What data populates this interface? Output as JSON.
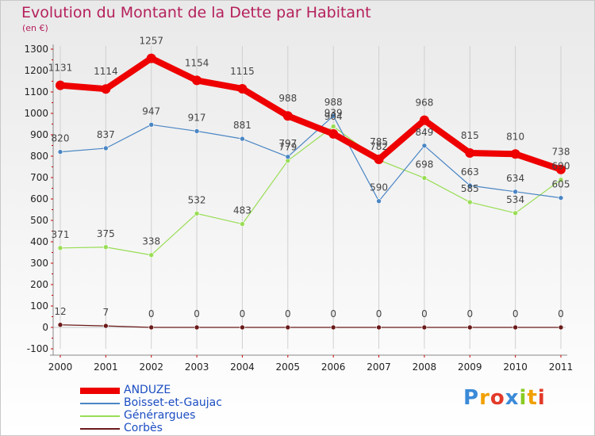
{
  "header": {
    "title": "Evolution du Montant de la Dette par Habitant",
    "unit": "(en €)"
  },
  "colors": {
    "title": "#b5205c",
    "legend_text": "#1c4ec2"
  },
  "chart_data": {
    "type": "line",
    "title": "Evolution du Montant de la Dette par Habitant",
    "subtitle": "(en €)",
    "x": [
      "2000",
      "2001",
      "2002",
      "2003",
      "2004",
      "2005",
      "2006",
      "2007",
      "2008",
      "2009",
      "2010",
      "2011"
    ],
    "ylim": [
      -100,
      1300
    ],
    "yticks": [
      -100,
      0,
      100,
      200,
      300,
      400,
      500,
      600,
      700,
      800,
      900,
      1000,
      1100,
      1200,
      1300
    ],
    "grid": "vertical",
    "legend_position": "bottom-left",
    "series": [
      {
        "name": "ANDUZE",
        "color": "#ee0000",
        "values": [
          1131,
          1114,
          1257,
          1154,
          1115,
          988,
          904,
          785,
          968,
          815,
          810,
          738
        ]
      },
      {
        "name": "Boisset-et-Gaujac",
        "color": "#4a86c4",
        "values": [
          820,
          837,
          947,
          917,
          881,
          797,
          988,
          590,
          849,
          663,
          634,
          605
        ]
      },
      {
        "name": "Générargues",
        "color": "#99dd55",
        "values": [
          371,
          375,
          338,
          532,
          483,
          779,
          939,
          782,
          698,
          585,
          534,
          690
        ]
      },
      {
        "name": "Corbès",
        "color": "#6b1a1a",
        "values": [
          12,
          7,
          0,
          0,
          0,
          0,
          0,
          0,
          0,
          0,
          0,
          0
        ]
      }
    ]
  },
  "brand": {
    "letters": [
      "P",
      "r",
      "o",
      "x",
      "i",
      "t",
      "i"
    ],
    "colors": [
      "#3b8ad8",
      "#f0a000",
      "#e23a2a",
      "#3b8ad8",
      "#88cc22",
      "#f0a000",
      "#e23a2a"
    ]
  }
}
